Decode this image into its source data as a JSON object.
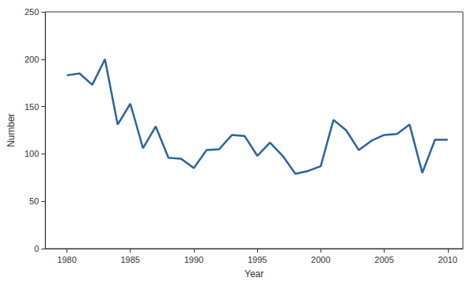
{
  "chart_data": {
    "type": "line",
    "x_label": "Year",
    "y_label": "Number",
    "x": [
      1980,
      1981,
      1982,
      1983,
      1984,
      1985,
      1986,
      1987,
      1988,
      1989,
      1990,
      1991,
      1992,
      1993,
      1994,
      1995,
      1996,
      1997,
      1998,
      1999,
      2000,
      2001,
      2002,
      2003,
      2004,
      2005,
      2006,
      2007,
      2008,
      2009,
      2010
    ],
    "values": [
      183,
      185,
      173,
      200,
      131,
      153,
      106,
      129,
      96,
      95,
      85,
      104,
      105,
      120,
      119,
      98,
      112,
      98,
      79,
      82,
      87,
      136,
      125,
      104,
      114,
      120,
      121,
      131,
      80,
      115,
      115
    ],
    "color": "#2b63a3",
    "xlim": [
      1978.3,
      2011.2
    ],
    "xticks": [
      1980,
      1985,
      1990,
      1995,
      2000,
      2005,
      2010
    ],
    "ylim": [
      0,
      250
    ],
    "yticks": [
      0,
      50,
      100,
      150,
      200,
      250
    ],
    "grid": false
  }
}
